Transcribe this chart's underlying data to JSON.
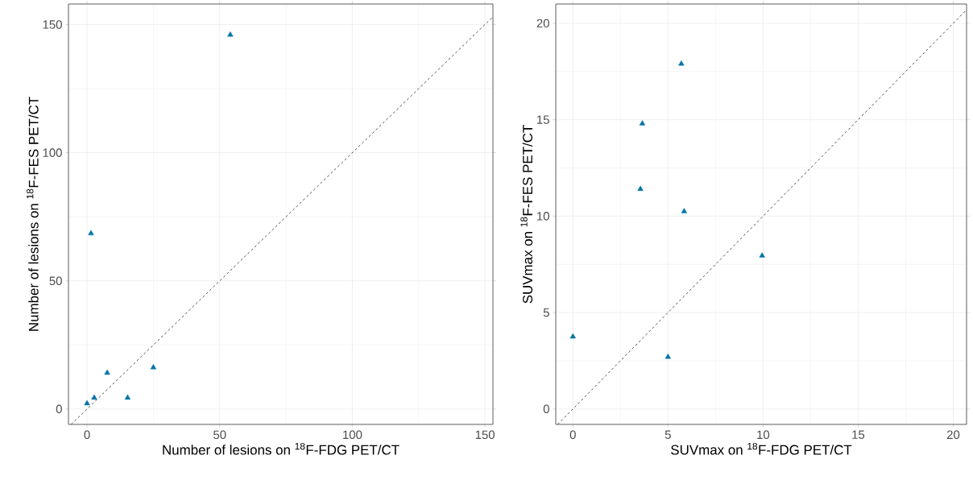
{
  "chart_data": [
    {
      "type": "scatter",
      "xlabel": "Number of lesions on $^{18}$F-FDG PET/CT",
      "ylabel": "Number of lesions on $^{18}$F-FES PET/CT",
      "xlim": [
        -7,
        153
      ],
      "ylim": [
        -6,
        158
      ],
      "xticks": [
        0,
        50,
        100,
        150
      ],
      "yticks": [
        0,
        50,
        100,
        150
      ],
      "grid": true,
      "marker": "triangle",
      "series": [
        {
          "color": "#0073a8",
          "x": [
            0,
            2.7,
            7.6,
            15.3,
            25,
            1.5,
            54
          ],
          "values": [
            2.2,
            4.4,
            14.1,
            4.4,
            16.2,
            68.5,
            146
          ]
        },
        {
          "type": "line",
          "color": "#404040",
          "line_style": "dashed",
          "marker": "none",
          "x": [
            -6,
            153
          ],
          "values": [
            -6,
            153
          ]
        }
      ]
    },
    {
      "type": "scatter",
      "xlabel": "SUVmax on $^{18}$F-FDG PET/CT",
      "ylabel": "SUVmax on $^{18}$F-FES PET/CT",
      "xlim": [
        -0.9,
        20.7
      ],
      "ylim": [
        -0.8,
        21
      ],
      "xticks": [
        0,
        5,
        10,
        15,
        20
      ],
      "yticks": [
        0,
        5,
        10,
        15,
        20
      ],
      "grid": true,
      "marker": "triangle",
      "series": [
        {
          "color": "#0073a8",
          "x": [
            5.7,
            3.65,
            3.55,
            5.85,
            9.95,
            0,
            5.0
          ],
          "values": [
            17.9,
            14.8,
            11.4,
            10.25,
            7.95,
            3.75,
            2.7
          ]
        },
        {
          "type": "line",
          "color": "#404040",
          "line_style": "dashed",
          "marker": "none",
          "x": [
            -0.8,
            20.7
          ],
          "values": [
            -0.8,
            20.7
          ]
        }
      ]
    }
  ]
}
